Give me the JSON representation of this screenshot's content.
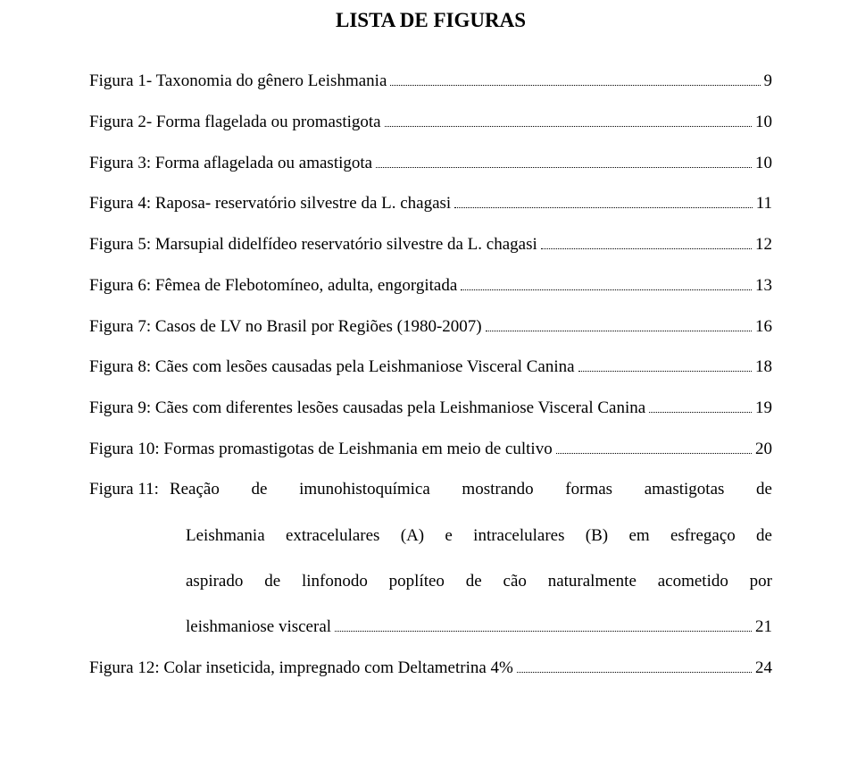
{
  "title": "LISTA DE FIGURAS",
  "entries": [
    {
      "label": "Figura 1- Taxonomia do gênero Leishmania",
      "page": "9"
    },
    {
      "label": "Figura 2- Forma flagelada ou promastigota",
      "page": "10"
    },
    {
      "label": "Figura 3: Forma aflagelada ou amastigota",
      "page": "10"
    },
    {
      "label": "Figura 4: Raposa- reservatório silvestre da L. chagasi",
      "page": "11"
    },
    {
      "label": "Figura 5: Marsupial didelfídeo reservatório silvestre da L. chagasi",
      "page": "12"
    },
    {
      "label": "Figura 6: Fêmea de Flebotomíneo, adulta, engorgitada",
      "page": "13"
    },
    {
      "label": "Figura 7: Casos de LV no Brasil por Regiões (1980-2007)",
      "page": "16"
    },
    {
      "label": "Figura 8: Cães com lesões causadas pela Leishmaniose Visceral Canina",
      "page": "18"
    },
    {
      "label": "Figura 9: Cães com diferentes lesões causadas pela Leishmaniose Visceral Canina",
      "page": "19"
    },
    {
      "label": "Figura 10: Formas promastigotas de Leishmania em meio de cultivo",
      "page": "20"
    }
  ],
  "multilineEntry": {
    "prefix": "Figura 11:",
    "line1": "Reação de imunohistoquímica mostrando formas amastigotas de",
    "line2": "Leishmania extracelulares (A) e intracelulares (B) em esfregaço de",
    "line3": "aspirado de linfonodo poplíteo de cão naturalmente acometido por",
    "lastLabel": "leishmaniose visceral",
    "page": "21"
  },
  "lastEntry": {
    "label": "Figura 12: Colar inseticida, impregnado com Deltametrina 4%",
    "page": "24"
  },
  "colors": {
    "background": "#ffffff",
    "text": "#000000"
  },
  "typography": {
    "fontFamily": "Times New Roman",
    "titleFontSize": 23,
    "bodyFontSize": 19,
    "titleWeight": "bold",
    "bodyWeight": "normal"
  },
  "layout": {
    "widthPx": 960,
    "heightPx": 863,
    "leaderStyle": "dotted"
  }
}
